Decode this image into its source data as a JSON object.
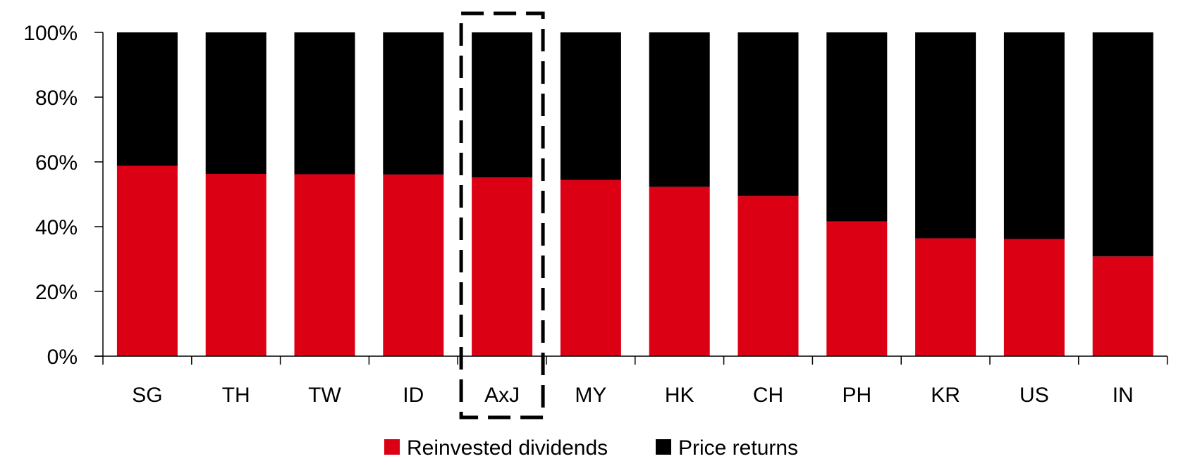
{
  "chart_data": {
    "type": "bar",
    "stacked": true,
    "categories": [
      "SG",
      "TH",
      "TW",
      "ID",
      "AxJ",
      "MY",
      "HK",
      "CH",
      "PH",
      "KR",
      "US",
      "IN"
    ],
    "series": [
      {
        "name": "Reinvested dividends",
        "color": "#dc0015",
        "values": [
          58.8,
          56.3,
          56.2,
          56.1,
          55.2,
          54.4,
          52.3,
          49.5,
          41.6,
          36.4,
          36.2,
          30.8
        ]
      },
      {
        "name": "Price returns",
        "color": "#000000",
        "values": [
          41.2,
          43.7,
          43.8,
          43.9,
          44.8,
          45.6,
          47.7,
          50.5,
          58.4,
          63.6,
          63.8,
          69.2
        ]
      }
    ],
    "ylim": [
      0,
      100
    ],
    "yticks": [
      "0%",
      "20%",
      "40%",
      "60%",
      "80%",
      "100%"
    ],
    "highlighted_category": "AxJ",
    "highlight_style": "dashed box",
    "legend_position": "bottom",
    "grid": false,
    "title": "",
    "xlabel": "",
    "ylabel": ""
  }
}
